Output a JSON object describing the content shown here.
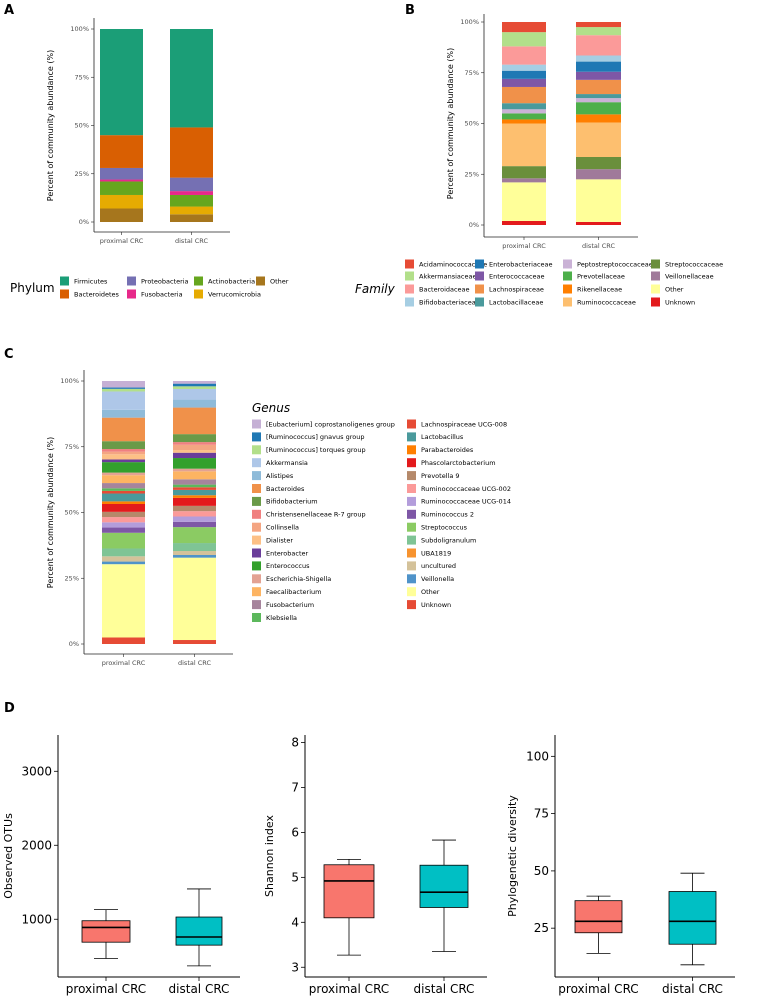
{
  "panel_labels": [
    "A",
    "B",
    "C",
    "D"
  ],
  "chart_data": [
    {
      "id": "A",
      "type": "bar",
      "stacked": true,
      "ylabel": "Percent of community abundance (%)",
      "yticks": [
        "0%",
        "25%",
        "50%",
        "75%",
        "100%"
      ],
      "categories": [
        "proximal CRC",
        "distal CRC"
      ],
      "legend_title": "Phylum",
      "legend_items": [
        {
          "name": "Firmicutes",
          "color": "#1b9e77"
        },
        {
          "name": "Bacteroidetes",
          "color": "#d95f02"
        },
        {
          "name": "Proteobacteria",
          "color": "#7570b3"
        },
        {
          "name": "Fusobacteria",
          "color": "#e7298a"
        },
        {
          "name": "Actinobacteria",
          "color": "#66a61e"
        },
        {
          "name": "Verrucomicrobia",
          "color": "#e6ab02"
        },
        {
          "name": "Other",
          "color": "#a6761d"
        }
      ],
      "series": [
        {
          "name": "Other",
          "color": "#a6761d",
          "values": [
            7,
            4
          ]
        },
        {
          "name": "Verrucomicrobia",
          "color": "#e6ab02",
          "values": [
            7,
            4
          ]
        },
        {
          "name": "Actinobacteria",
          "color": "#66a61e",
          "values": [
            7,
            6
          ]
        },
        {
          "name": "Fusobacteria",
          "color": "#e7298a",
          "values": [
            1,
            2
          ]
        },
        {
          "name": "Proteobacteria",
          "color": "#7570b3",
          "values": [
            6,
            7
          ]
        },
        {
          "name": "Bacteroidetes",
          "color": "#d95f02",
          "values": [
            17,
            26
          ]
        },
        {
          "name": "Firmicutes",
          "color": "#1b9e77",
          "values": [
            55,
            51
          ]
        }
      ]
    },
    {
      "id": "B",
      "type": "bar",
      "stacked": true,
      "ylabel": "Percent of community abundance (%)",
      "yticks": [
        "0%",
        "25%",
        "50%",
        "75%",
        "100%"
      ],
      "categories": [
        "proximal CRC",
        "distal CRC"
      ],
      "legend_title": "Family",
      "legend_items": [
        {
          "name": "Acidaminococcaceae",
          "color": "#e64b35"
        },
        {
          "name": "Akkermansiaceae",
          "color": "#b2df8a"
        },
        {
          "name": "Bacteroidaceae",
          "color": "#fb9a99"
        },
        {
          "name": "Bifidobacteriaceae",
          "color": "#a6cee3"
        },
        {
          "name": "Enterobacteriaceae",
          "color": "#1f78b4"
        },
        {
          "name": "Enterococcaceae",
          "color": "#7e57a6"
        },
        {
          "name": "Lachnospiraceae",
          "color": "#f0914a"
        },
        {
          "name": "Lactobacillaceae",
          "color": "#4a9a9c"
        },
        {
          "name": "Peptostreptococcaceae",
          "color": "#cab2d6"
        },
        {
          "name": "Prevotellaceae",
          "color": "#4daf4a"
        },
        {
          "name": "Rikenellaceae",
          "color": "#ff7f00"
        },
        {
          "name": "Ruminococcaceae",
          "color": "#fdbf6f"
        },
        {
          "name": "Streptococcaceae",
          "color": "#6a8f3c"
        },
        {
          "name": "Veillonellaceae",
          "color": "#a07a9a"
        },
        {
          "name": "Other",
          "color": "#ffff99"
        },
        {
          "name": "Unknown",
          "color": "#e31a1c"
        }
      ],
      "series": [
        {
          "name": "Unknown",
          "color": "#e31a1c",
          "values": [
            2,
            1.5
          ]
        },
        {
          "name": "Other",
          "color": "#ffff99",
          "values": [
            19,
            21
          ]
        },
        {
          "name": "Veillonellaceae",
          "color": "#a07a9a",
          "values": [
            2,
            5
          ]
        },
        {
          "name": "Streptococcaceae",
          "color": "#6a8f3c",
          "values": [
            6,
            6
          ]
        },
        {
          "name": "Ruminococcaceae",
          "color": "#fdbf6f",
          "values": [
            21,
            17
          ]
        },
        {
          "name": "Rikenellaceae",
          "color": "#ff7f00",
          "values": [
            2,
            4
          ]
        },
        {
          "name": "Prevotellaceae",
          "color": "#4daf4a",
          "values": [
            3,
            6
          ]
        },
        {
          "name": "Peptostreptococcaceae",
          "color": "#cab2d6",
          "values": [
            2,
            2
          ]
        },
        {
          "name": "Lactobacillaceae",
          "color": "#4a9a9c",
          "values": [
            3,
            2
          ]
        },
        {
          "name": "Lachnospiraceae",
          "color": "#f0914a",
          "values": [
            8,
            7
          ]
        },
        {
          "name": "Enterococcaceae",
          "color": "#7e57a6",
          "values": [
            4,
            4
          ]
        },
        {
          "name": "Enterobacteriaceae",
          "color": "#1f78b4",
          "values": [
            4,
            5
          ]
        },
        {
          "name": "Bifidobacteriaceae",
          "color": "#a6cee3",
          "values": [
            3,
            3
          ]
        },
        {
          "name": "Bacteroidaceae",
          "color": "#fb9a99",
          "values": [
            9,
            10
          ]
        },
        {
          "name": "Akkermansiaceae",
          "color": "#b2df8a",
          "values": [
            7,
            4
          ]
        },
        {
          "name": "Acidaminococcaceae",
          "color": "#e64b35",
          "values": [
            5,
            2.5
          ]
        }
      ]
    },
    {
      "id": "C",
      "type": "bar",
      "stacked": true,
      "ylabel": "Percent of community abundance (%)",
      "yticks": [
        "0%",
        "25%",
        "50%",
        "75%",
        "100%"
      ],
      "categories": [
        "proximal CRC",
        "distal CRC"
      ],
      "legend_title": "Genus",
      "legend_items": [
        {
          "name": "[Eubacterium] coprostanoligenes group",
          "color": "#c5b0d5"
        },
        {
          "name": "[Ruminococcus] gnavus group",
          "color": "#1f78b4"
        },
        {
          "name": "[Ruminococcus] torques group",
          "color": "#b2df8a"
        },
        {
          "name": "Akkermansia",
          "color": "#aec7e8"
        },
        {
          "name": "Alistipes",
          "color": "#8fbbd9"
        },
        {
          "name": "Bacteroides",
          "color": "#f0914a"
        },
        {
          "name": "Bifidobacterium",
          "color": "#6a9a48"
        },
        {
          "name": "Christensenellaceae R-7 group",
          "color": "#f08080"
        },
        {
          "name": "Collinsella",
          "color": "#f4a582"
        },
        {
          "name": "Dialister",
          "color": "#fdc086"
        },
        {
          "name": "Enterobacter",
          "color": "#6a3d9a"
        },
        {
          "name": "Enterococcus",
          "color": "#33a02c"
        },
        {
          "name": "Escherichia-Shigella",
          "color": "#e3a293"
        },
        {
          "name": "Faecalibacterium",
          "color": "#fdb462"
        },
        {
          "name": "Fusobacterium",
          "color": "#a6849c"
        },
        {
          "name": "Klebsiella",
          "color": "#5cb85c"
        },
        {
          "name": "Lachnospiraceae UCG-008",
          "color": "#e64b35"
        },
        {
          "name": "Lactobacillus",
          "color": "#4a9a9c"
        },
        {
          "name": "Parabacteroides",
          "color": "#ff7f00"
        },
        {
          "name": "Phascolarctobacterium",
          "color": "#e31a1c"
        },
        {
          "name": "Prevotella 9",
          "color": "#b5896a"
        },
        {
          "name": "Ruminococcaceae UCG-002",
          "color": "#fb9a99"
        },
        {
          "name": "Ruminococcaceae UCG-014",
          "color": "#b39ddb"
        },
        {
          "name": "Ruminococcus 2",
          "color": "#7e57a6"
        },
        {
          "name": "Streptococcus",
          "color": "#8bcb63"
        },
        {
          "name": "Subdoligranulum",
          "color": "#7fc495"
        },
        {
          "name": "UBA1819",
          "color": "#f7932f"
        },
        {
          "name": "uncultured",
          "color": "#d4c29a"
        },
        {
          "name": "Veillonella",
          "color": "#4f93c9"
        },
        {
          "name": "Other",
          "color": "#ffff99"
        },
        {
          "name": "Unknown",
          "color": "#e64b35"
        }
      ],
      "series": [
        {
          "name": "Unknown",
          "color": "#e64b35",
          "values": [
            2.5,
            1.5
          ]
        },
        {
          "name": "Other",
          "color": "#ffff99",
          "values": [
            28,
            31
          ]
        },
        {
          "name": "Veillonella",
          "color": "#4f93c9",
          "values": [
            1,
            1
          ]
        },
        {
          "name": "uncultured",
          "color": "#d4c29a",
          "values": [
            2,
            1.5
          ]
        },
        {
          "name": "Subdoligranulum",
          "color": "#7fc495",
          "values": [
            3,
            3
          ]
        },
        {
          "name": "Streptococcus",
          "color": "#8bcb63",
          "values": [
            6,
            6
          ]
        },
        {
          "name": "Ruminococcus 2",
          "color": "#7e57a6",
          "values": [
            2,
            2
          ]
        },
        {
          "name": "Ruminococcaceae UCG-014",
          "color": "#b39ddb",
          "values": [
            2,
            2
          ]
        },
        {
          "name": "Ruminococcaceae UCG-002",
          "color": "#fb9a99",
          "values": [
            2,
            2
          ]
        },
        {
          "name": "Prevotella 9",
          "color": "#b5896a",
          "values": [
            2,
            2
          ]
        },
        {
          "name": "Phascolarctobacterium",
          "color": "#e31a1c",
          "values": [
            3,
            3
          ]
        },
        {
          "name": "Parabacteroides",
          "color": "#ff7f00",
          "values": [
            1,
            1
          ]
        },
        {
          "name": "Lactobacillus",
          "color": "#4a9a9c",
          "values": [
            3,
            2
          ]
        },
        {
          "name": "Lachnospiraceae UCG-008",
          "color": "#e64b35",
          "values": [
            1,
            1
          ]
        },
        {
          "name": "Klebsiella",
          "color": "#5cb85c",
          "values": [
            1,
            1
          ]
        },
        {
          "name": "Fusobacterium",
          "color": "#a6849c",
          "values": [
            2,
            2
          ]
        },
        {
          "name": "Faecalibacterium",
          "color": "#fdb462",
          "values": [
            3,
            3
          ]
        },
        {
          "name": "Escherichia-Shigella",
          "color": "#e3a293",
          "values": [
            1,
            1
          ]
        },
        {
          "name": "Enterococcus",
          "color": "#33a02c",
          "values": [
            4,
            4
          ]
        },
        {
          "name": "Enterobacter",
          "color": "#6a3d9a",
          "values": [
            1,
            2
          ]
        },
        {
          "name": "Dialister",
          "color": "#fdc086",
          "values": [
            2,
            1
          ]
        },
        {
          "name": "Collinsella",
          "color": "#f4a582",
          "values": [
            1,
            2
          ]
        },
        {
          "name": "Christensenellaceae R-7 group",
          "color": "#f08080",
          "values": [
            1,
            1
          ]
        },
        {
          "name": "Bifidobacterium",
          "color": "#6a9a48",
          "values": [
            3,
            3
          ]
        },
        {
          "name": "Bacteroides",
          "color": "#f0914a",
          "values": [
            9,
            10
          ]
        },
        {
          "name": "Alistipes",
          "color": "#8fbbd9",
          "values": [
            3,
            3
          ]
        },
        {
          "name": "Akkermansia",
          "color": "#aec7e8",
          "values": [
            7,
            4
          ]
        },
        {
          "name": "[Ruminococcus] torques group",
          "color": "#b2df8a",
          "values": [
            1,
            1
          ]
        },
        {
          "name": "[Ruminococcus] gnavus group",
          "color": "#1f78b4",
          "values": [
            0.5,
            1
          ]
        },
        {
          "name": "[Eubacterium] coprostanoligenes group",
          "color": "#c5b0d5",
          "values": [
            2.5,
            1
          ]
        }
      ]
    },
    {
      "id": "D1",
      "type": "box",
      "ylabel": "Observed OTUs",
      "ylim": [
        260,
        3450
      ],
      "yticks": [
        1000,
        2000,
        3000
      ],
      "categories": [
        "proximal CRC",
        "distal CRC"
      ],
      "boxes": [
        {
          "min": 470,
          "q1": 690,
          "median": 890,
          "q3": 980,
          "max": 1130,
          "color": "#f8766d"
        },
        {
          "min": 370,
          "q1": 650,
          "median": 760,
          "q3": 1030,
          "max": 1410,
          "color": "#00bfc4"
        }
      ]
    },
    {
      "id": "D2",
      "type": "box",
      "ylabel": "Shannon index",
      "ylim": [
        2.85,
        8.1
      ],
      "yticks": [
        3,
        4,
        5,
        6,
        7,
        8
      ],
      "categories": [
        "proximal CRC",
        "distal CRC"
      ],
      "boxes": [
        {
          "min": 3.27,
          "q1": 4.1,
          "median": 4.92,
          "q3": 5.28,
          "max": 5.4,
          "color": "#f8766d"
        },
        {
          "min": 3.35,
          "q1": 4.33,
          "median": 4.67,
          "q3": 5.27,
          "max": 5.83,
          "color": "#00bfc4"
        }
      ]
    },
    {
      "id": "D3",
      "type": "box",
      "ylabel": "Phylogenetic diversity",
      "ylim": [
        5,
        108
      ],
      "yticks": [
        25,
        50,
        75,
        100
      ],
      "categories": [
        "proximal CRC",
        "distal CRC"
      ],
      "boxes": [
        {
          "min": 14,
          "q1": 23,
          "median": 28,
          "q3": 37,
          "max": 39,
          "color": "#f8766d"
        },
        {
          "min": 9,
          "q1": 18,
          "median": 28,
          "q3": 41,
          "max": 49,
          "color": "#00bfc4"
        }
      ]
    }
  ]
}
